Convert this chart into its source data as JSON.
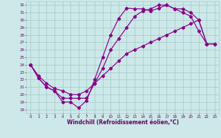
{
  "xlabel": "Windchill (Refroidissement éolien,°C)",
  "bg_color": "#cce8e8",
  "grid_color": "#aacccc",
  "line_color": "#880088",
  "xlim": [
    -0.5,
    23.5
  ],
  "ylim": [
    17.5,
    32.5
  ],
  "xticks": [
    0,
    1,
    2,
    3,
    4,
    5,
    6,
    7,
    8,
    9,
    10,
    11,
    12,
    13,
    14,
    15,
    16,
    17,
    18,
    19,
    20,
    21,
    22,
    23
  ],
  "yticks": [
    18,
    19,
    20,
    21,
    22,
    23,
    24,
    25,
    26,
    27,
    28,
    29,
    30,
    31,
    32
  ],
  "line1_x": [
    0,
    1,
    2,
    3,
    4,
    5,
    6,
    7,
    8,
    9,
    10,
    11,
    12,
    13,
    14,
    15,
    16,
    17,
    18,
    19,
    20,
    21,
    22,
    23
  ],
  "line1_y": [
    24.0,
    22.2,
    21.0,
    20.5,
    19.0,
    19.0,
    18.2,
    19.2,
    22.0,
    25.0,
    28.0,
    30.2,
    31.6,
    31.5,
    31.5,
    31.2,
    31.6,
    32.0,
    31.5,
    31.0,
    30.5,
    28.5,
    26.8,
    26.8
  ],
  "line2_x": [
    0,
    1,
    2,
    3,
    4,
    5,
    6,
    7,
    8,
    9,
    10,
    11,
    12,
    13,
    14,
    15,
    16,
    17,
    18,
    19,
    20,
    21,
    22,
    23
  ],
  "line2_y": [
    24.0,
    22.2,
    21.0,
    20.5,
    19.5,
    19.5,
    19.5,
    19.5,
    21.5,
    23.5,
    26.0,
    27.5,
    29.0,
    30.5,
    31.2,
    31.5,
    32.0,
    32.0,
    31.5,
    31.5,
    31.0,
    30.0,
    26.8,
    26.8
  ],
  "line3_x": [
    0,
    1,
    2,
    3,
    4,
    5,
    6,
    7,
    8,
    9,
    10,
    11,
    12,
    13,
    14,
    15,
    16,
    17,
    18,
    19,
    20,
    21,
    22,
    23
  ],
  "line3_y": [
    24.0,
    22.5,
    21.5,
    20.8,
    20.5,
    20.0,
    20.0,
    20.5,
    21.5,
    22.5,
    23.5,
    24.5,
    25.5,
    26.0,
    26.5,
    27.0,
    27.5,
    28.0,
    28.5,
    29.0,
    29.5,
    30.0,
    26.8,
    26.8
  ],
  "xlabel_color": "#660066",
  "tick_color": "#660066",
  "tick_fontsize": 4.0,
  "xlabel_fontsize": 5.5
}
